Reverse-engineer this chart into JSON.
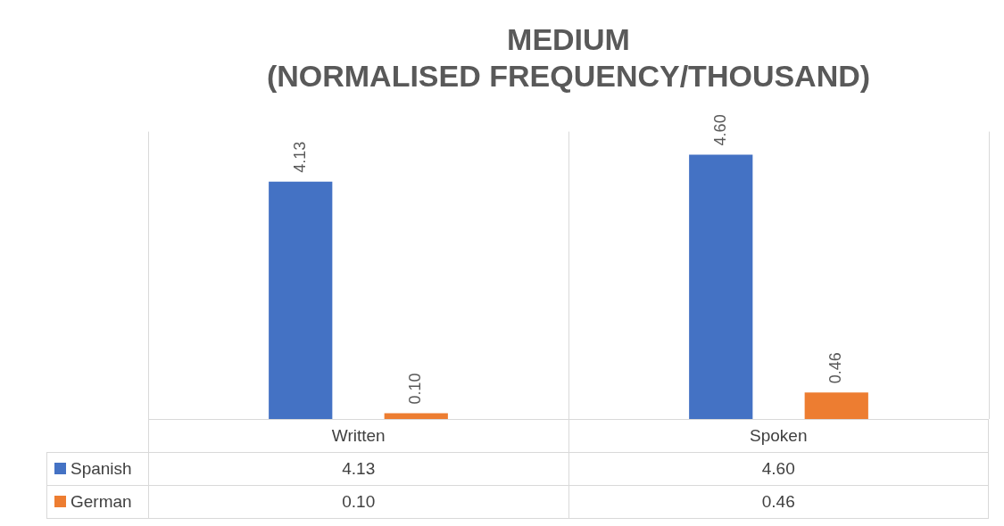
{
  "chart_data": {
    "type": "bar",
    "title": "MEDIUM\n(NORMALISED FREQUENCY/THOUSAND)",
    "categories": [
      "Written",
      "Spoken"
    ],
    "series": [
      {
        "name": "Spanish",
        "color": "#4472c4",
        "values": [
          4.13,
          4.6
        ],
        "value_labels": [
          "4.13",
          "4.60"
        ]
      },
      {
        "name": "German",
        "color": "#ed7d31",
        "values": [
          0.1,
          0.46
        ],
        "value_labels": [
          "0.10",
          "0.46"
        ]
      }
    ],
    "ylim": [
      0,
      5
    ],
    "grid": "x",
    "legend": "bottom"
  }
}
